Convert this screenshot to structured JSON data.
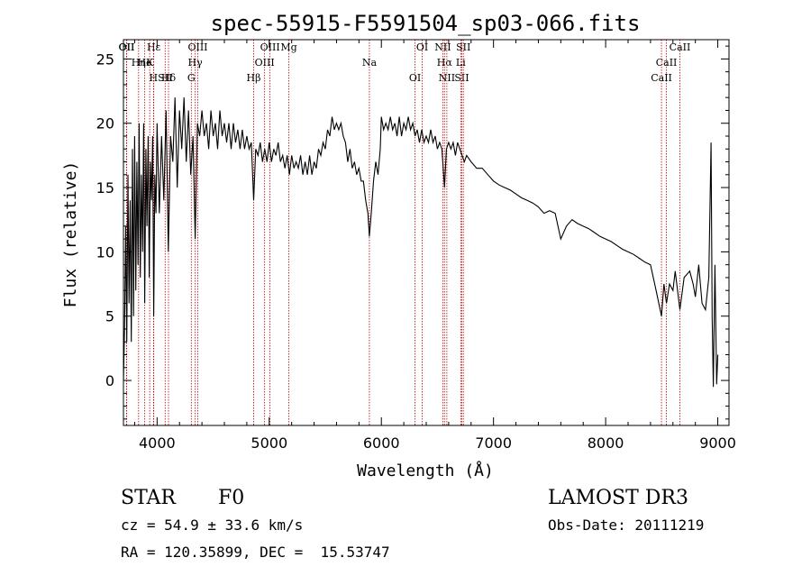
{
  "chart_data": {
    "type": "line",
    "title": "spec-55915-F5591504_sp03-066.fits",
    "xlabel": "Wavelength (Å)",
    "ylabel": "Flux (relative)",
    "xlim": [
      3700,
      9100
    ],
    "ylim": [
      -3.5,
      26.5
    ],
    "xticks": [
      4000,
      5000,
      6000,
      7000,
      8000,
      9000
    ],
    "yticks": [
      0,
      5,
      10,
      15,
      20,
      25
    ],
    "series": [
      {
        "name": "flux",
        "points": [
          [
            3700,
            0
          ],
          [
            3710,
            4
          ],
          [
            3720,
            12
          ],
          [
            3730,
            3
          ],
          [
            3740,
            16
          ],
          [
            3750,
            6
          ],
          [
            3760,
            14
          ],
          [
            3770,
            3
          ],
          [
            3780,
            18
          ],
          [
            3790,
            5
          ],
          [
            3800,
            19
          ],
          [
            3810,
            7
          ],
          [
            3820,
            17
          ],
          [
            3830,
            9
          ],
          [
            3840,
            20
          ],
          [
            3850,
            8
          ],
          [
            3860,
            16
          ],
          [
            3870,
            10
          ],
          [
            3880,
            20
          ],
          [
            3890,
            6
          ],
          [
            3900,
            18
          ],
          [
            3910,
            12
          ],
          [
            3920,
            19
          ],
          [
            3930,
            8
          ],
          [
            3940,
            17
          ],
          [
            3950,
            14
          ],
          [
            3960,
            19
          ],
          [
            3970,
            5
          ],
          [
            3980,
            16
          ],
          [
            3990,
            13
          ],
          [
            4000,
            20
          ],
          [
            4020,
            13
          ],
          [
            4040,
            19
          ],
          [
            4060,
            14
          ],
          [
            4080,
            21
          ],
          [
            4100,
            10
          ],
          [
            4120,
            19
          ],
          [
            4140,
            17
          ],
          [
            4160,
            22
          ],
          [
            4180,
            15
          ],
          [
            4200,
            21
          ],
          [
            4220,
            18
          ],
          [
            4240,
            22
          ],
          [
            4260,
            17
          ],
          [
            4280,
            21
          ],
          [
            4300,
            16
          ],
          [
            4320,
            19
          ],
          [
            4340,
            11
          ],
          [
            4360,
            20
          ],
          [
            4380,
            19
          ],
          [
            4400,
            21
          ],
          [
            4420,
            19
          ],
          [
            4440,
            20
          ],
          [
            4460,
            18
          ],
          [
            4480,
            21
          ],
          [
            4500,
            19
          ],
          [
            4520,
            20
          ],
          [
            4540,
            18
          ],
          [
            4560,
            21
          ],
          [
            4580,
            19
          ],
          [
            4600,
            20
          ],
          [
            4620,
            18.5
          ],
          [
            4640,
            20
          ],
          [
            4660,
            18
          ],
          [
            4680,
            20
          ],
          [
            4700,
            18.5
          ],
          [
            4720,
            19.5
          ],
          [
            4740,
            18
          ],
          [
            4760,
            19.5
          ],
          [
            4780,
            18
          ],
          [
            4800,
            19
          ],
          [
            4820,
            18
          ],
          [
            4840,
            18.5
          ],
          [
            4861,
            14
          ],
          [
            4880,
            18
          ],
          [
            4900,
            17.5
          ],
          [
            4920,
            18.5
          ],
          [
            4940,
            17
          ],
          [
            4960,
            18
          ],
          [
            4980,
            17
          ],
          [
            5000,
            18.5
          ],
          [
            5020,
            17
          ],
          [
            5040,
            18
          ],
          [
            5060,
            17.5
          ],
          [
            5080,
            18.5
          ],
          [
            5100,
            17
          ],
          [
            5120,
            17.5
          ],
          [
            5140,
            16.5
          ],
          [
            5160,
            17.5
          ],
          [
            5180,
            16
          ],
          [
            5200,
            17.5
          ],
          [
            5220,
            16.5
          ],
          [
            5240,
            17
          ],
          [
            5260,
            16.5
          ],
          [
            5280,
            17.5
          ],
          [
            5300,
            16
          ],
          [
            5320,
            17
          ],
          [
            5340,
            16
          ],
          [
            5360,
            17.5
          ],
          [
            5380,
            16
          ],
          [
            5400,
            17
          ],
          [
            5420,
            16.5
          ],
          [
            5440,
            18
          ],
          [
            5460,
            17.5
          ],
          [
            5480,
            18.5
          ],
          [
            5500,
            18
          ],
          [
            5520,
            19.5
          ],
          [
            5540,
            19
          ],
          [
            5560,
            20.5
          ],
          [
            5580,
            19.5
          ],
          [
            5600,
            20
          ],
          [
            5620,
            19.5
          ],
          [
            5640,
            20
          ],
          [
            5660,
            19
          ],
          [
            5680,
            18.5
          ],
          [
            5700,
            17
          ],
          [
            5720,
            18
          ],
          [
            5740,
            16.5
          ],
          [
            5760,
            17
          ],
          [
            5780,
            16
          ],
          [
            5800,
            16.5
          ],
          [
            5820,
            15.5
          ],
          [
            5840,
            15.5
          ],
          [
            5860,
            14
          ],
          [
            5880,
            13
          ],
          [
            5893,
            11.2
          ],
          [
            5910,
            13
          ],
          [
            5930,
            15.5
          ],
          [
            5950,
            17
          ],
          [
            5970,
            16
          ],
          [
            5990,
            18
          ],
          [
            6000,
            20.5
          ],
          [
            6020,
            19.5
          ],
          [
            6040,
            20
          ],
          [
            6060,
            19.5
          ],
          [
            6080,
            20.5
          ],
          [
            6100,
            19.5
          ],
          [
            6120,
            20
          ],
          [
            6140,
            19
          ],
          [
            6160,
            20.5
          ],
          [
            6180,
            19
          ],
          [
            6200,
            20
          ],
          [
            6220,
            19.5
          ],
          [
            6240,
            20.5
          ],
          [
            6260,
            19.5
          ],
          [
            6280,
            20
          ],
          [
            6300,
            19
          ],
          [
            6320,
            19.5
          ],
          [
            6340,
            18.5
          ],
          [
            6360,
            19.5
          ],
          [
            6380,
            18.5
          ],
          [
            6400,
            19
          ],
          [
            6420,
            18.5
          ],
          [
            6440,
            19.5
          ],
          [
            6460,
            18.5
          ],
          [
            6480,
            19
          ],
          [
            6500,
            18
          ],
          [
            6520,
            18.5
          ],
          [
            6540,
            18
          ],
          [
            6563,
            15
          ],
          [
            6580,
            18
          ],
          [
            6600,
            18.5
          ],
          [
            6620,
            18
          ],
          [
            6640,
            18.5
          ],
          [
            6660,
            17.5
          ],
          [
            6680,
            18.5
          ],
          [
            6700,
            18
          ],
          [
            6720,
            17.5
          ],
          [
            6740,
            17
          ],
          [
            6760,
            17.5
          ],
          [
            6800,
            17
          ],
          [
            6850,
            16.5
          ],
          [
            6900,
            16.5
          ],
          [
            6950,
            16
          ],
          [
            7000,
            15.5
          ],
          [
            7050,
            15.2
          ],
          [
            7100,
            15
          ],
          [
            7150,
            14.8
          ],
          [
            7200,
            14.5
          ],
          [
            7250,
            14.2
          ],
          [
            7300,
            14
          ],
          [
            7350,
            13.8
          ],
          [
            7400,
            13.5
          ],
          [
            7450,
            13
          ],
          [
            7500,
            13.2
          ],
          [
            7550,
            13
          ],
          [
            7600,
            11
          ],
          [
            7650,
            12
          ],
          [
            7700,
            12.5
          ],
          [
            7750,
            12.2
          ],
          [
            7800,
            12
          ],
          [
            7850,
            11.8
          ],
          [
            7900,
            11.5
          ],
          [
            7950,
            11.2
          ],
          [
            8000,
            11
          ],
          [
            8050,
            10.8
          ],
          [
            8100,
            10.5
          ],
          [
            8150,
            10.2
          ],
          [
            8200,
            10
          ],
          [
            8250,
            9.8
          ],
          [
            8300,
            9.5
          ],
          [
            8350,
            9.2
          ],
          [
            8400,
            9
          ],
          [
            8450,
            7
          ],
          [
            8498,
            5
          ],
          [
            8520,
            7.5
          ],
          [
            8542,
            6
          ],
          [
            8570,
            7.5
          ],
          [
            8600,
            7
          ],
          [
            8620,
            8.5
          ],
          [
            8662,
            5.5
          ],
          [
            8700,
            8
          ],
          [
            8750,
            8.5
          ],
          [
            8780,
            7.5
          ],
          [
            8800,
            6.5
          ],
          [
            8830,
            9
          ],
          [
            8860,
            6
          ],
          [
            8890,
            5.5
          ],
          [
            8920,
            8
          ],
          [
            8940,
            18.5
          ],
          [
            8950,
            5
          ],
          [
            8960,
            -0.5
          ],
          [
            8975,
            9
          ],
          [
            8990,
            -0.3
          ],
          [
            9000,
            2
          ]
        ]
      }
    ],
    "lines": [
      {
        "label": "Hε",
        "x": 3970
      },
      {
        "label": "K",
        "x": 3934
      },
      {
        "label": "Hδ",
        "x": 4102
      },
      {
        "label": "OII",
        "x": 3727
      },
      {
        "label": "He",
        "x": 3889
      },
      {
        "label": "SII",
        "x": 4072
      },
      {
        "label": "OII",
        "x": 3729
      },
      {
        "label": "Hη",
        "x": 3835
      },
      {
        "label": "H",
        "x": 3968
      },
      {
        "label": "OIII",
        "x": 4363
      },
      {
        "label": "Hγ",
        "x": 4340
      },
      {
        "label": "G",
        "x": 4305
      },
      {
        "label": "OIII",
        "x": 5007
      },
      {
        "label": "OIII",
        "x": 4959
      },
      {
        "label": "Hβ",
        "x": 4861
      },
      {
        "label": "Mg",
        "x": 5175
      },
      {
        "label": "Na",
        "x": 5893
      },
      {
        "label": "OI",
        "x": 6300
      },
      {
        "label": "OI",
        "x": 6364
      },
      {
        "label": "Hα",
        "x": 6563
      },
      {
        "label": "SII",
        "x": 6717
      },
      {
        "label": "NII",
        "x": 6548
      },
      {
        "label": "Li",
        "x": 6708
      },
      {
        "label": "NII",
        "x": 6584
      },
      {
        "label": "SII",
        "x": 6731
      },
      {
        "label": "CaII",
        "x": 8542
      },
      {
        "label": "CaII",
        "x": 8498
      },
      {
        "label": "CaII",
        "x": 8662
      }
    ]
  },
  "info": {
    "class": "STAR",
    "subclass": "F0",
    "cz": "cz = 54.9 ± 33.6 km/s",
    "radec": "RA = 120.35899, DEC =  15.53747",
    "survey": "LAMOST DR3",
    "obsdate": "Obs-Date: 20111219"
  }
}
